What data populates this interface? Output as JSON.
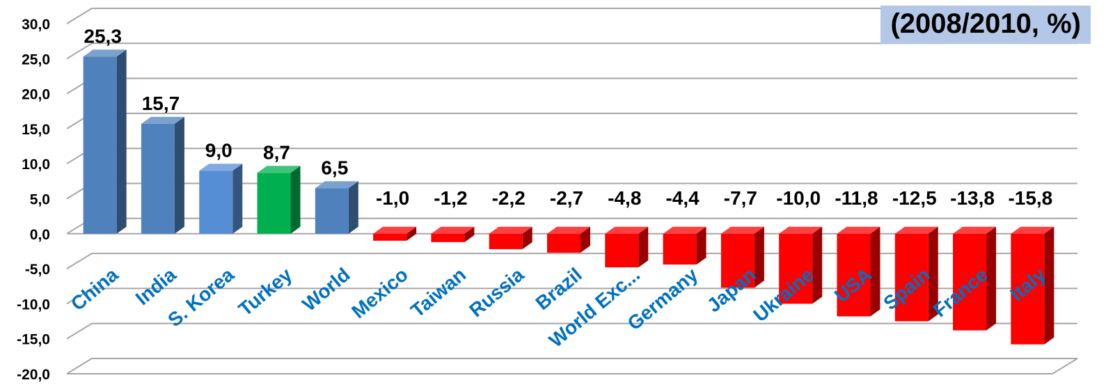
{
  "chart_data": {
    "type": "bar",
    "title": "(2008/2010, %)",
    "xlabel": "",
    "ylabel": "",
    "ylim": [
      -20,
      30
    ],
    "yticks": [
      "30,0",
      "25,0",
      "20,0",
      "15,0",
      "10,0",
      "5,0",
      "0,0",
      "-5,0",
      "-10,0",
      "-15,0",
      "-20,0"
    ],
    "ytick_values": [
      30,
      25,
      20,
      15,
      10,
      5,
      0,
      -5,
      -10,
      -15,
      -20
    ],
    "grid": true,
    "bar_style": "3d",
    "categories": [
      "China",
      "India",
      "S. Korea",
      "Turkey",
      "World",
      "Mexico",
      "Taiwan",
      "Russia",
      "Brazil",
      "World Exc...",
      "Germany",
      "Japan",
      "Ukraine",
      "USA",
      "Spain",
      "France",
      "Italy"
    ],
    "values": [
      25.3,
      15.7,
      9.0,
      8.7,
      6.5,
      -1.0,
      -1.2,
      -2.2,
      -2.7,
      -4.8,
      -4.4,
      -7.7,
      -10.0,
      -11.8,
      -12.5,
      -13.8,
      -15.8
    ],
    "data_labels": [
      "25,3",
      "15,7",
      "9,0",
      "8,7",
      "6,5",
      "-1,0",
      "-1,2",
      "-2,2",
      "-2,7",
      "-4,8",
      "-4,4",
      "-7,7",
      "-10,0",
      "-11,8",
      "-12,5",
      "-13,8",
      "-15,8"
    ],
    "colors": [
      "#4f81bd",
      "#4f81bd",
      "#558ed5",
      "#00b050",
      "#4f81bd",
      "#ff0000",
      "#ff0000",
      "#ff0000",
      "#ff0000",
      "#ff0000",
      "#ff0000",
      "#ff0000",
      "#ff0000",
      "#ff0000",
      "#ff0000",
      "#ff0000",
      "#ff0000"
    ],
    "category_label_color": "#0070c0"
  }
}
